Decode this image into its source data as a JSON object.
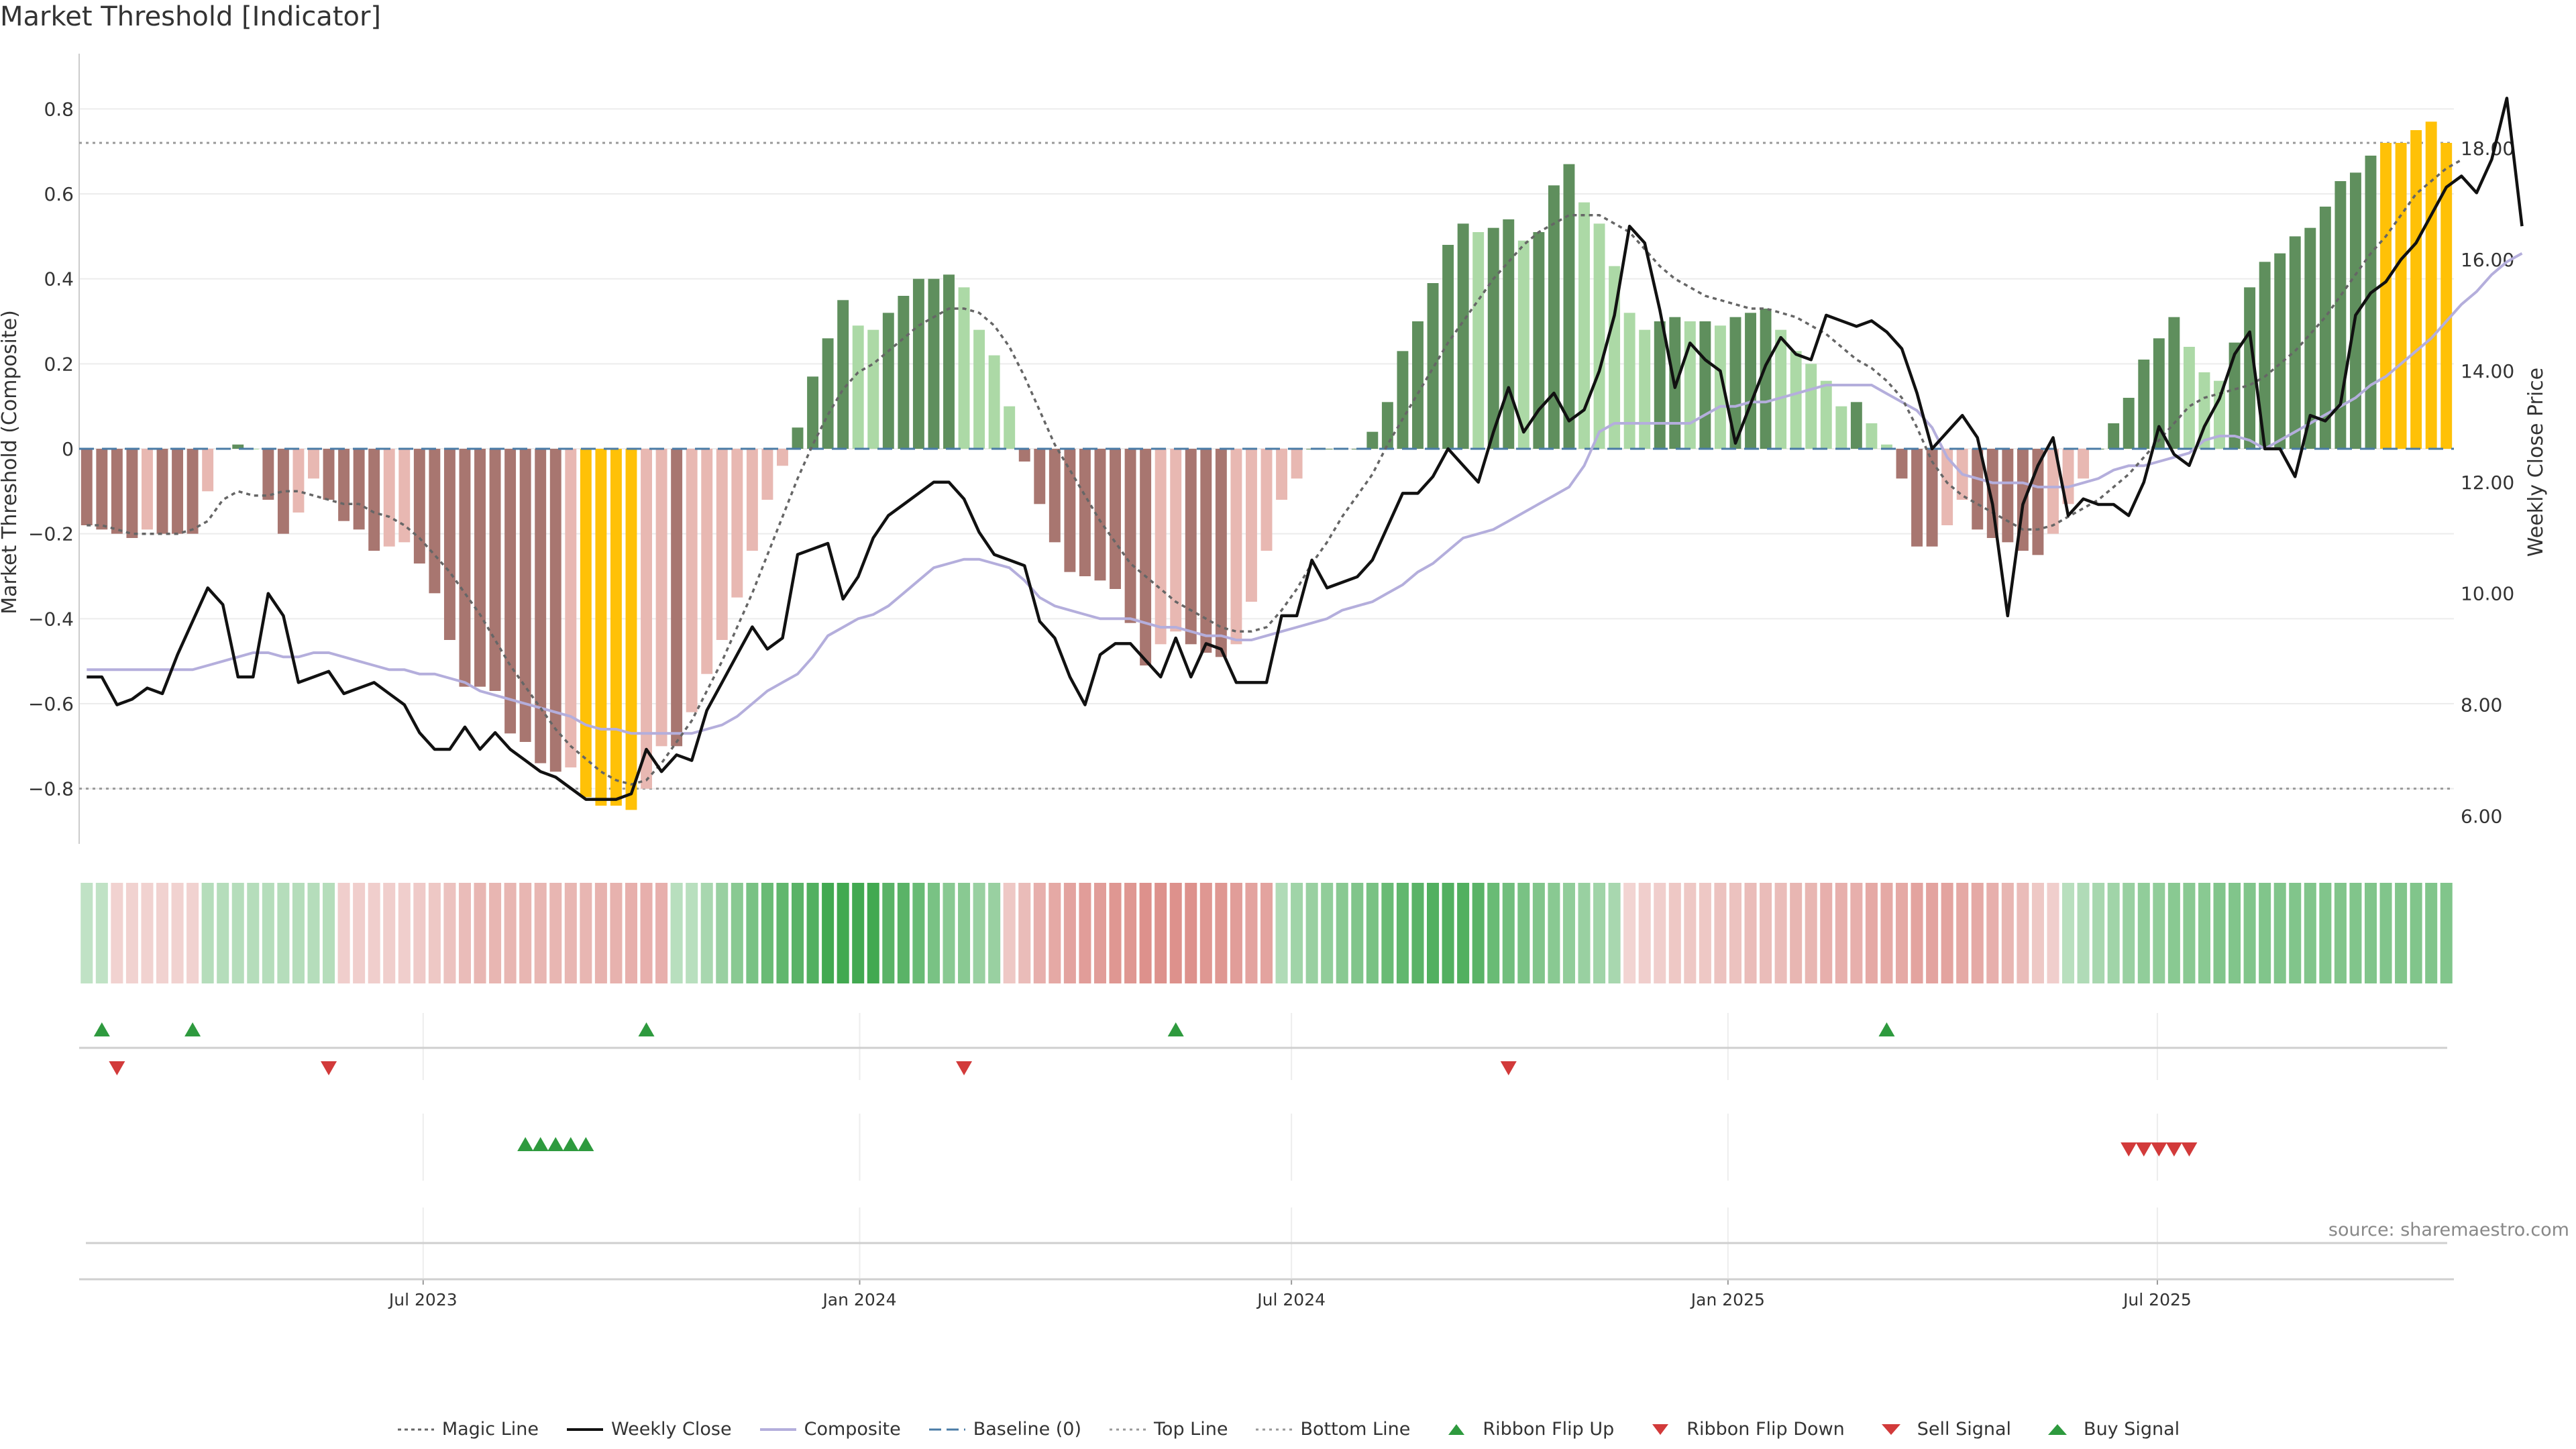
{
  "chart_data": {
    "type": "bar",
    "title": "Market Threshold [Indicator]",
    "ylabel": "Market Threshold (Composite)",
    "y2label": "Weekly Close Price",
    "ylim": [
      -0.93,
      0.93
    ],
    "y2lim": [
      5.5,
      19.7
    ],
    "y_ticks": [
      "0.8",
      "0.6",
      "0.4",
      "0.2",
      "0",
      "−0.2",
      "−0.4",
      "−0.6",
      "−0.8"
    ],
    "y_tick_values": [
      0.8,
      0.6,
      0.4,
      0.2,
      0,
      -0.2,
      -0.4,
      -0.6,
      -0.8
    ],
    "y2_ticks": [
      "18.00",
      "16.00",
      "14.00",
      "12.00",
      "10.00",
      "8.00",
      "6.00"
    ],
    "y2_tick_values": [
      18,
      16,
      14,
      12,
      10,
      8,
      6
    ],
    "x_start": "2023-02-06",
    "x_end": "2025-11-03",
    "x_ticks": [
      {
        "label": "Jul 2023",
        "date": "2023-07-01"
      },
      {
        "label": "Jan 2024",
        "date": "2024-01-01"
      },
      {
        "label": "Jul 2024",
        "date": "2024-07-01"
      },
      {
        "label": "Jan 2025",
        "date": "2025-01-01"
      },
      {
        "label": "Jul 2025",
        "date": "2025-07-01"
      }
    ],
    "top_line": 0.72,
    "bottom_line": -0.8,
    "baseline": 0,
    "composite_bars": [
      -0.18,
      -0.19,
      -0.2,
      -0.21,
      -0.19,
      -0.2,
      -0.2,
      -0.2,
      -0.1,
      0.0,
      0.01,
      0.0,
      -0.12,
      -0.2,
      -0.15,
      -0.07,
      -0.12,
      -0.17,
      -0.19,
      -0.24,
      -0.23,
      -0.22,
      -0.27,
      -0.34,
      -0.45,
      -0.56,
      -0.56,
      -0.57,
      -0.67,
      -0.69,
      -0.74,
      -0.76,
      -0.75,
      -0.82,
      -0.84,
      -0.84,
      -0.85,
      -0.8,
      -0.7,
      -0.7,
      -0.62,
      -0.53,
      -0.45,
      -0.35,
      -0.24,
      -0.12,
      -0.04,
      0.05,
      0.17,
      0.26,
      0.35,
      0.29,
      0.28,
      0.32,
      0.36,
      0.4,
      0.4,
      0.41,
      0.38,
      0.28,
      0.22,
      0.1,
      -0.03,
      -0.13,
      -0.22,
      -0.29,
      -0.3,
      -0.31,
      -0.33,
      -0.41,
      -0.51,
      -0.46,
      -0.43,
      -0.46,
      -0.48,
      -0.49,
      -0.46,
      -0.36,
      -0.24,
      -0.12,
      -0.07,
      0.0,
      0.0,
      0.0,
      0.0,
      0.04,
      0.11,
      0.23,
      0.3,
      0.39,
      0.48,
      0.53,
      0.51,
      0.52,
      0.54,
      0.49,
      0.51,
      0.62,
      0.67,
      0.58,
      0.53,
      0.43,
      0.32,
      0.28,
      0.3,
      0.31,
      0.3,
      0.3,
      0.29,
      0.31,
      0.32,
      0.33,
      0.28,
      0.23,
      0.2,
      0.16,
      0.1,
      0.11,
      0.06,
      0.01,
      -0.07,
      -0.23,
      -0.23,
      -0.18,
      -0.12,
      -0.19,
      -0.21,
      -0.22,
      -0.24,
      -0.25,
      -0.2,
      -0.13,
      -0.07,
      0.0,
      0.06,
      0.12,
      0.21,
      0.26,
      0.31,
      0.24,
      0.18,
      0.16,
      0.25,
      0.38,
      0.44,
      0.46,
      0.5,
      0.52,
      0.57,
      0.63,
      0.65,
      0.69,
      0.72,
      0.72,
      0.75,
      0.77,
      0.72
    ],
    "magic_line": [
      -0.18,
      -0.18,
      -0.19,
      -0.2,
      -0.2,
      -0.2,
      -0.2,
      -0.19,
      -0.17,
      -0.12,
      -0.1,
      -0.11,
      -0.11,
      -0.1,
      -0.1,
      -0.11,
      -0.12,
      -0.13,
      -0.13,
      -0.15,
      -0.16,
      -0.18,
      -0.21,
      -0.25,
      -0.29,
      -0.34,
      -0.39,
      -0.45,
      -0.51,
      -0.56,
      -0.61,
      -0.66,
      -0.7,
      -0.73,
      -0.76,
      -0.78,
      -0.79,
      -0.78,
      -0.74,
      -0.69,
      -0.64,
      -0.57,
      -0.5,
      -0.42,
      -0.34,
      -0.25,
      -0.16,
      -0.07,
      0.01,
      0.08,
      0.14,
      0.18,
      0.2,
      0.23,
      0.26,
      0.29,
      0.31,
      0.33,
      0.33,
      0.32,
      0.29,
      0.24,
      0.17,
      0.09,
      0.01,
      -0.05,
      -0.11,
      -0.17,
      -0.22,
      -0.27,
      -0.3,
      -0.33,
      -0.36,
      -0.38,
      -0.4,
      -0.42,
      -0.43,
      -0.43,
      -0.42,
      -0.38,
      -0.33,
      -0.27,
      -0.22,
      -0.16,
      -0.11,
      -0.06,
      0.01,
      0.07,
      0.13,
      0.19,
      0.25,
      0.3,
      0.35,
      0.4,
      0.44,
      0.48,
      0.51,
      0.53,
      0.55,
      0.55,
      0.55,
      0.53,
      0.51,
      0.47,
      0.43,
      0.4,
      0.38,
      0.36,
      0.35,
      0.34,
      0.33,
      0.33,
      0.32,
      0.31,
      0.29,
      0.27,
      0.24,
      0.21,
      0.19,
      0.16,
      0.12,
      0.05,
      -0.03,
      -0.08,
      -0.11,
      -0.13,
      -0.15,
      -0.17,
      -0.19,
      -0.19,
      -0.18,
      -0.16,
      -0.14,
      -0.12,
      -0.09,
      -0.06,
      -0.02,
      0.02,
      0.06,
      0.1,
      0.12,
      0.13,
      0.14,
      0.15,
      0.17,
      0.2,
      0.23,
      0.27,
      0.31,
      0.36,
      0.41,
      0.46,
      0.5,
      0.55,
      0.6,
      0.63,
      0.66,
      0.68
    ],
    "composite_line": [
      -0.52,
      -0.52,
      -0.52,
      -0.52,
      -0.52,
      -0.52,
      -0.52,
      -0.52,
      -0.51,
      -0.5,
      -0.49,
      -0.48,
      -0.48,
      -0.49,
      -0.49,
      -0.48,
      -0.48,
      -0.49,
      -0.5,
      -0.51,
      -0.52,
      -0.52,
      -0.53,
      -0.53,
      -0.54,
      -0.55,
      -0.57,
      -0.58,
      -0.59,
      -0.6,
      -0.61,
      -0.62,
      -0.63,
      -0.65,
      -0.66,
      -0.66,
      -0.67,
      -0.67,
      -0.67,
      -0.67,
      -0.67,
      -0.66,
      -0.65,
      -0.63,
      -0.6,
      -0.57,
      -0.55,
      -0.53,
      -0.49,
      -0.44,
      -0.42,
      -0.4,
      -0.39,
      -0.37,
      -0.34,
      -0.31,
      -0.28,
      -0.27,
      -0.26,
      -0.26,
      -0.27,
      -0.28,
      -0.31,
      -0.35,
      -0.37,
      -0.38,
      -0.39,
      -0.4,
      -0.4,
      -0.4,
      -0.41,
      -0.42,
      -0.42,
      -0.43,
      -0.44,
      -0.44,
      -0.45,
      -0.45,
      -0.44,
      -0.43,
      -0.42,
      -0.41,
      -0.4,
      -0.38,
      -0.37,
      -0.36,
      -0.34,
      -0.32,
      -0.29,
      -0.27,
      -0.24,
      -0.21,
      -0.2,
      -0.19,
      -0.17,
      -0.15,
      -0.13,
      -0.11,
      -0.09,
      -0.04,
      0.04,
      0.06,
      0.06,
      0.06,
      0.06,
      0.06,
      0.06,
      0.08,
      0.1,
      0.1,
      0.11,
      0.11,
      0.12,
      0.13,
      0.14,
      0.15,
      0.15,
      0.15,
      0.15,
      0.13,
      0.11,
      0.09,
      0.05,
      -0.02,
      -0.06,
      -0.07,
      -0.08,
      -0.08,
      -0.08,
      -0.09,
      -0.09,
      -0.09,
      -0.08,
      -0.07,
      -0.05,
      -0.04,
      -0.04,
      -0.03,
      -0.02,
      -0.01,
      0.02,
      0.03,
      0.03,
      0.02,
      0.0,
      0.02,
      0.04,
      0.06,
      0.08,
      0.1,
      0.12,
      0.15,
      0.17,
      0.2,
      0.23,
      0.26,
      0.3,
      0.34,
      0.37,
      0.41,
      0.44,
      0.46
    ],
    "weekly_close": [
      8.5,
      8.5,
      8.0,
      8.1,
      8.3,
      8.2,
      8.9,
      9.5,
      10.1,
      9.8,
      8.5,
      8.5,
      10.0,
      9.6,
      8.4,
      8.5,
      8.6,
      8.2,
      8.3,
      8.4,
      8.2,
      8.0,
      7.5,
      7.2,
      7.2,
      7.6,
      7.2,
      7.5,
      7.2,
      7.0,
      6.8,
      6.7,
      6.5,
      6.3,
      6.3,
      6.3,
      6.4,
      7.2,
      6.8,
      7.1,
      7.0,
      7.9,
      8.4,
      8.9,
      9.4,
      9.0,
      9.2,
      10.7,
      10.8,
      10.9,
      9.9,
      10.3,
      11.0,
      11.4,
      11.6,
      11.8,
      12.0,
      12.0,
      11.7,
      11.1,
      10.7,
      10.6,
      10.5,
      9.5,
      9.2,
      8.5,
      8.0,
      8.9,
      9.1,
      9.1,
      8.8,
      8.5,
      9.2,
      8.5,
      9.1,
      9.0,
      8.4,
      8.4,
      8.4,
      9.6,
      9.6,
      10.6,
      10.1,
      10.2,
      10.3,
      10.6,
      11.2,
      11.8,
      11.8,
      12.1,
      12.6,
      12.3,
      12.0,
      12.9,
      13.7,
      12.9,
      13.3,
      13.6,
      13.1,
      13.3,
      14.0,
      15.0,
      16.6,
      16.3,
      15.1,
      13.7,
      14.5,
      14.2,
      14.0,
      12.7,
      13.4,
      14.1,
      14.6,
      14.3,
      14.2,
      15.0,
      14.9,
      14.8,
      14.9,
      14.7,
      14.4,
      13.6,
      12.6,
      12.9,
      13.2,
      12.8,
      11.6,
      9.6,
      11.6,
      12.3,
      12.8,
      11.4,
      11.7,
      11.6,
      11.6,
      11.4,
      12.0,
      13.0,
      12.5,
      12.3,
      13.0,
      13.5,
      14.3,
      14.7,
      12.6,
      12.6,
      12.1,
      13.2,
      13.1,
      13.4,
      15.0,
      15.4,
      15.6,
      16.0,
      16.3,
      16.8,
      17.3,
      17.5,
      17.2,
      17.8,
      18.9,
      16.6
    ],
    "ribbon_strength": [
      0.15,
      0.15,
      -0.12,
      -0.12,
      -0.12,
      -0.12,
      -0.12,
      -0.12,
      0.22,
      0.22,
      0.22,
      0.22,
      0.22,
      0.22,
      0.22,
      0.22,
      0.22,
      -0.15,
      -0.15,
      -0.15,
      -0.15,
      -0.15,
      -0.18,
      -0.2,
      -0.25,
      -0.3,
      -0.35,
      -0.35,
      -0.35,
      -0.35,
      -0.35,
      -0.35,
      -0.35,
      -0.35,
      -0.38,
      -0.38,
      -0.4,
      -0.4,
      -0.4,
      0.2,
      0.2,
      0.3,
      0.4,
      0.5,
      0.6,
      0.7,
      0.75,
      0.8,
      0.85,
      0.95,
      0.95,
      0.95,
      0.95,
      0.8,
      0.8,
      0.7,
      0.6,
      0.5,
      0.5,
      0.4,
      0.4,
      -0.2,
      -0.3,
      -0.4,
      -0.45,
      -0.5,
      -0.55,
      -0.55,
      -0.6,
      -0.6,
      -0.65,
      -0.65,
      -0.65,
      -0.65,
      -0.6,
      -0.6,
      -0.55,
      -0.5,
      -0.5,
      0.25,
      0.35,
      0.4,
      0.45,
      0.5,
      0.55,
      0.6,
      0.7,
      0.75,
      0.8,
      0.85,
      0.85,
      0.85,
      0.8,
      0.7,
      0.65,
      0.6,
      0.55,
      0.5,
      0.45,
      0.4,
      0.35,
      0.3,
      -0.1,
      -0.15,
      -0.15,
      -0.2,
      -0.2,
      -0.2,
      -0.25,
      -0.25,
      -0.3,
      -0.3,
      -0.3,
      -0.35,
      -0.35,
      -0.4,
      -0.4,
      -0.4,
      -0.45,
      -0.45,
      -0.45,
      -0.5,
      -0.5,
      -0.5,
      -0.45,
      -0.45,
      -0.4,
      -0.35,
      -0.3,
      -0.2,
      -0.15,
      0.2,
      0.25,
      0.3,
      0.35,
      0.4,
      0.45,
      0.45,
      0.5,
      0.5,
      0.5,
      0.55,
      0.55,
      0.55,
      0.55,
      0.55,
      0.55,
      0.55,
      0.55,
      0.55,
      0.55,
      0.55,
      0.55,
      0.55,
      0.55,
      0.55,
      0.55
    ],
    "ribbon_flip_up_weeks": [
      1,
      7,
      37,
      72,
      119
    ],
    "ribbon_flip_down_weeks": [
      2,
      16,
      58,
      94
    ],
    "buy_signal_weeks": [
      29,
      30,
      31,
      32,
      33
    ],
    "sell_signal_weeks": [
      135,
      136,
      137,
      138,
      139
    ],
    "legend": [
      "Magic Line",
      "Weekly Close",
      "Composite",
      "Baseline (0)",
      "Top Line",
      "Bottom Line",
      "Ribbon Flip Up",
      "Ribbon Flip Down",
      "Sell Signal",
      "Buy Signal"
    ],
    "source": "source: sharemaestro.com",
    "grid": true,
    "legend_position": "bottom-center"
  },
  "colors": {
    "bear_weak": "#e8b8b2",
    "bear_strong": "#a87670",
    "bull_weak": "#acd9a6",
    "bull_strong": "#5f8f5d",
    "extreme": "#ffc107",
    "weekly_close": "#111111",
    "composite": "#b4aedc",
    "magic_line": "#666666",
    "baseline": "#4a7ba6",
    "ref_line": "#999999",
    "green_marker": "#2e9a3e",
    "red_marker": "#d23a3a",
    "ribbon_green": "#3aa54a",
    "ribbon_red": "#d0665f"
  },
  "legend": [
    "Magic Line",
    "Weekly Close",
    "Composite",
    "Baseline (0)",
    "Top Line",
    "Bottom Line",
    "Ribbon Flip Up",
    "Ribbon Flip Down",
    "Sell Signal",
    "Buy Signal"
  ]
}
